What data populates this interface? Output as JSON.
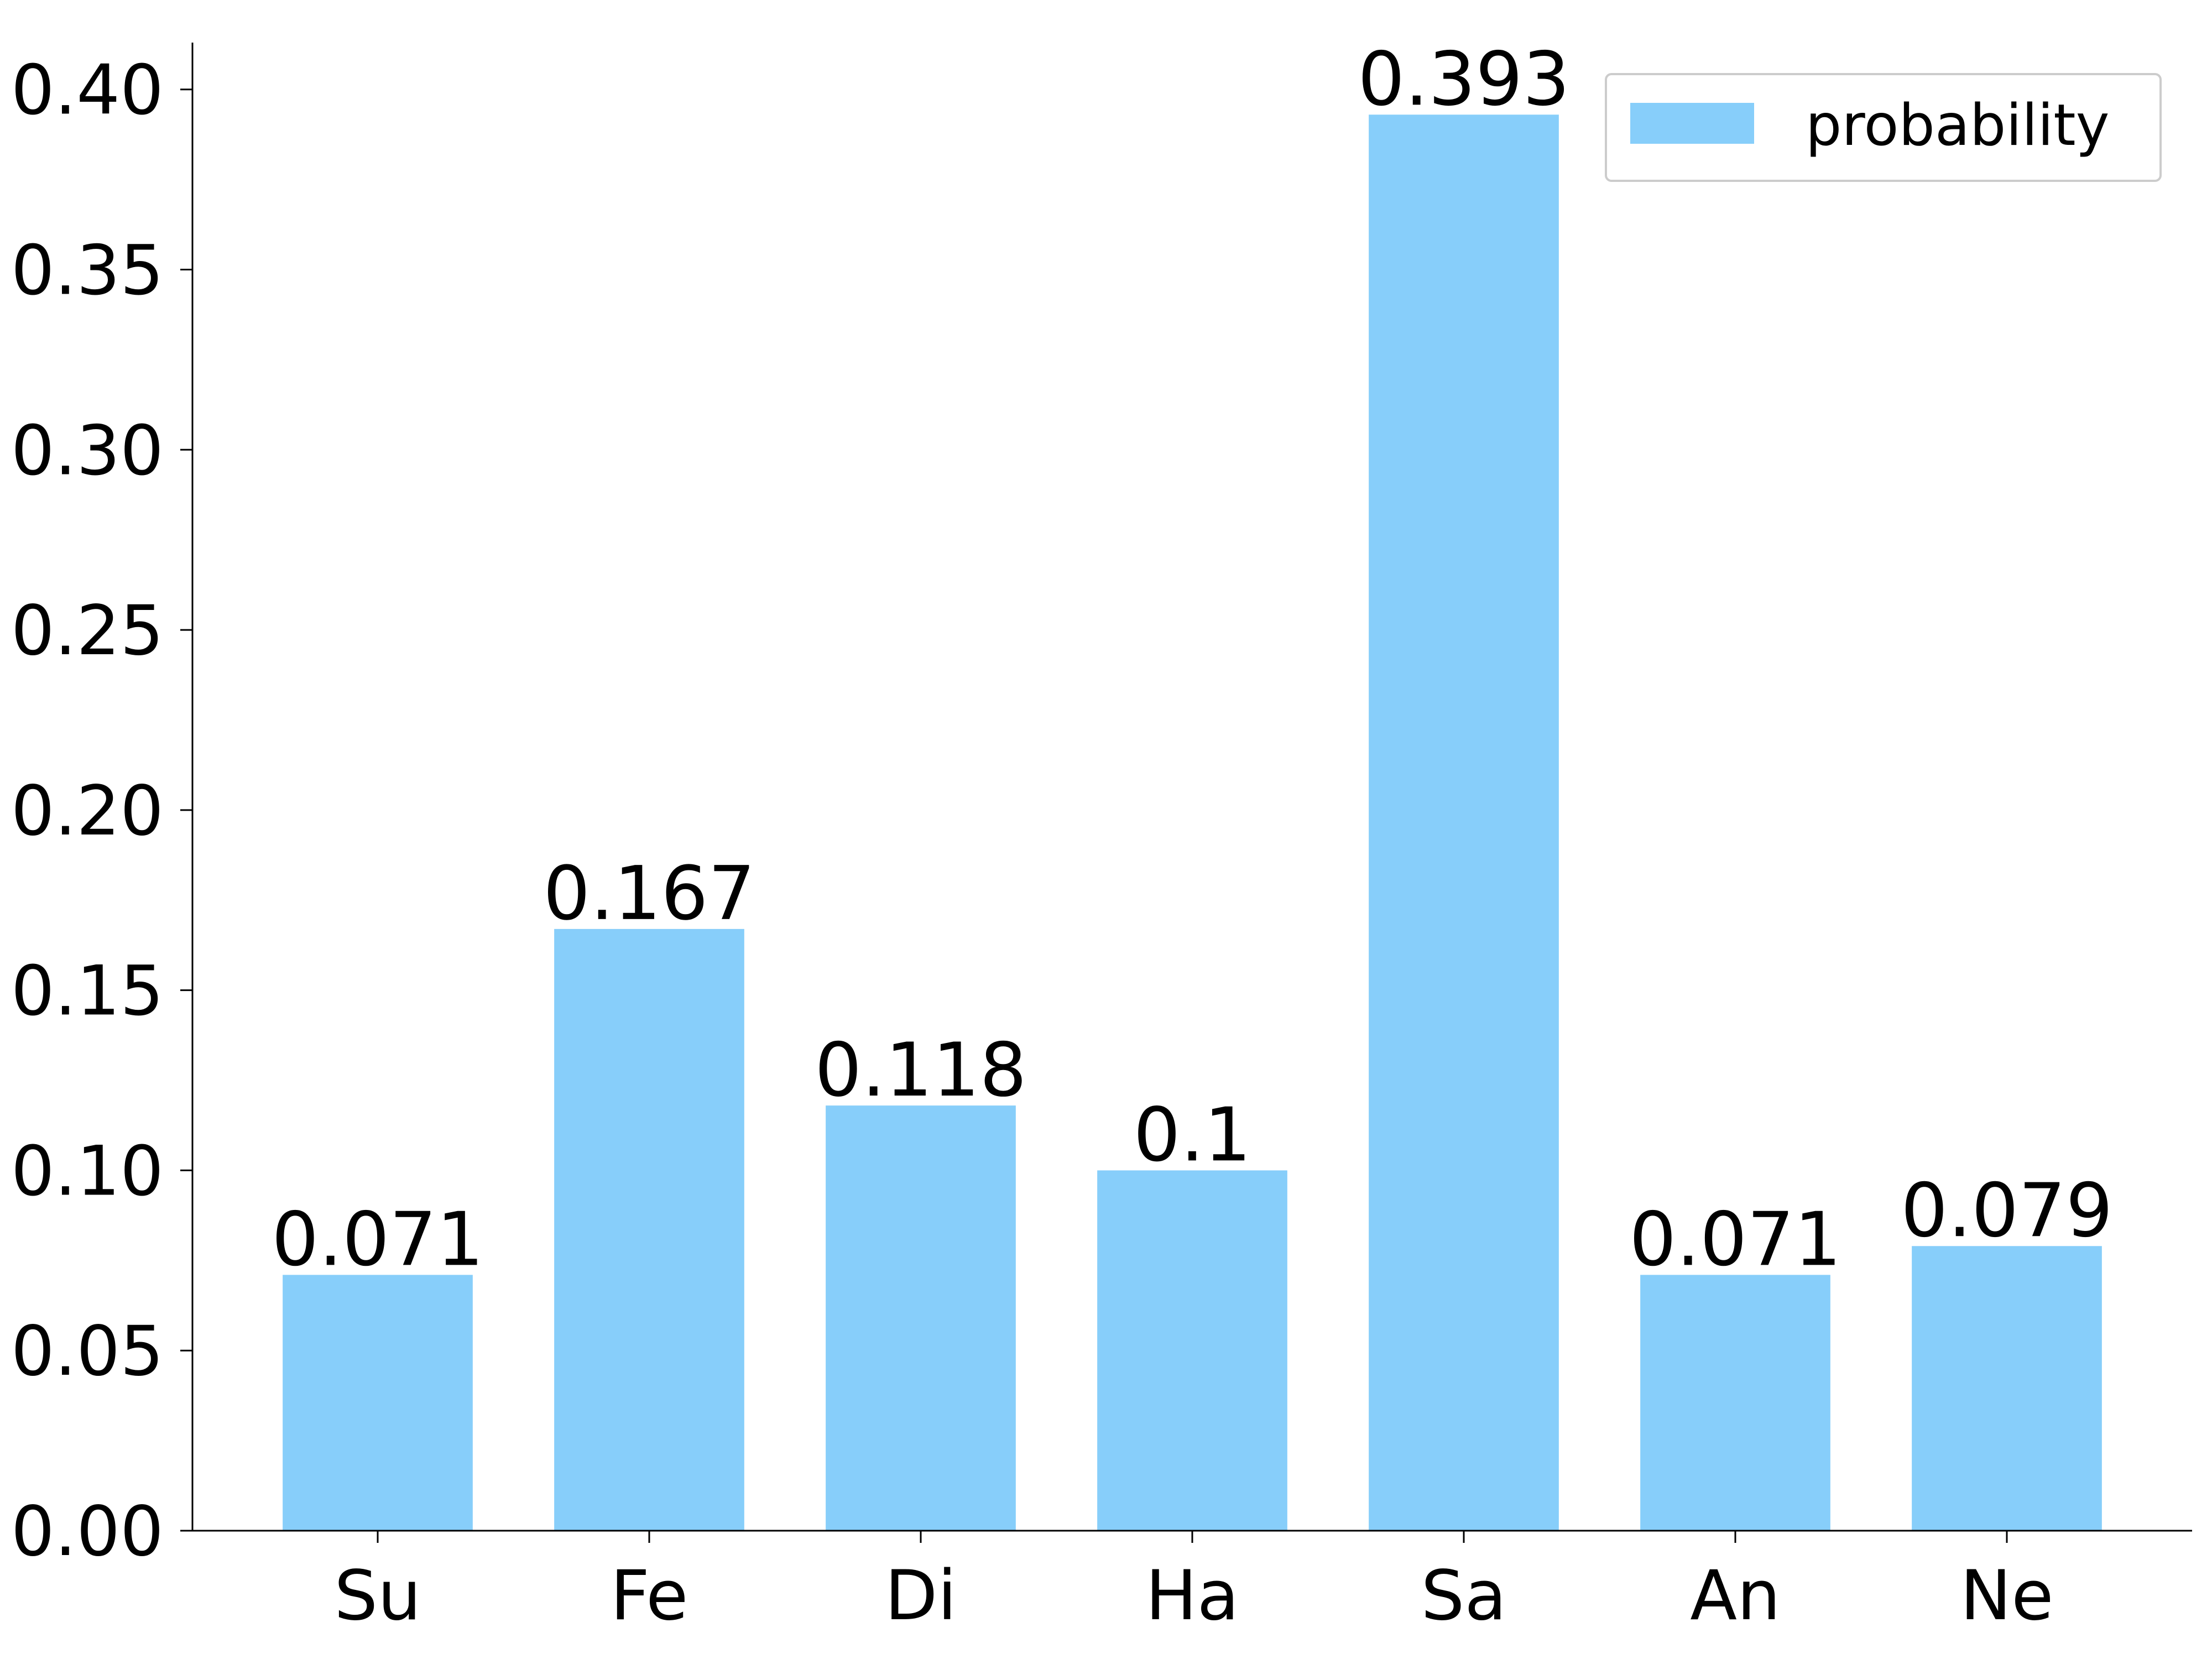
{
  "chart_data": {
    "type": "bar",
    "categories": [
      "Su",
      "Fe",
      "Di",
      "Ha",
      "Sa",
      "An",
      "Ne"
    ],
    "series": [
      {
        "name": "probability",
        "color": "#87cefa",
        "values": [
          0.071,
          0.167,
          0.118,
          0.1,
          0.393,
          0.071,
          0.079
        ]
      }
    ],
    "ylim": [
      0,
      0.413
    ],
    "yticks": [
      {
        "value": 0,
        "label": "0.00"
      },
      {
        "value": 0.05,
        "label": "0.05"
      },
      {
        "value": 0.1,
        "label": "0.10"
      },
      {
        "value": 0.15,
        "label": "0.15"
      },
      {
        "value": 0.2,
        "label": "0.20"
      },
      {
        "value": 0.25,
        "label": "0.25"
      },
      {
        "value": 0.3,
        "label": "0.30"
      },
      {
        "value": 0.35,
        "label": "0.35"
      },
      {
        "value": 0.4,
        "label": "0.40"
      }
    ],
    "legend": "upper right",
    "grid": false
  }
}
